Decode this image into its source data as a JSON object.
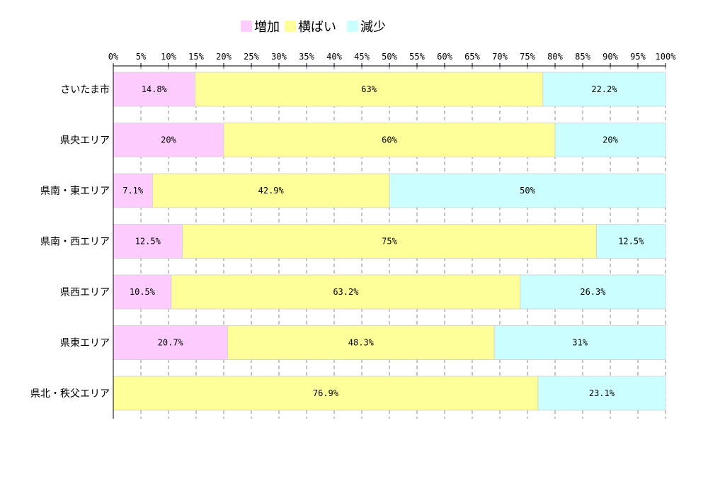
{
  "chart_data": {
    "type": "bar",
    "orientation": "horizontal",
    "stacked": "percent",
    "categories": [
      "さいたま市",
      "県央エリア",
      "県南・東エリア",
      "県南・西エリア",
      "県西エリア",
      "県東エリア",
      "県北・秩父エリア"
    ],
    "series": [
      {
        "name": "増加",
        "color": "#ffccff",
        "values": [
          14.8,
          20,
          7.1,
          12.5,
          10.5,
          20.7,
          0
        ],
        "labels": [
          "14.8%",
          "20%",
          "7.1%",
          "12.5%",
          "10.5%",
          "20.7%",
          ""
        ]
      },
      {
        "name": "横ばい",
        "color": "#ffff99",
        "values": [
          63,
          60,
          42.9,
          75,
          63.2,
          48.3,
          76.9
        ],
        "labels": [
          "63%",
          "60%",
          "42.9%",
          "75%",
          "63.2%",
          "48.3%",
          "76.9%"
        ]
      },
      {
        "name": "減少",
        "color": "#ccffff",
        "values": [
          22.2,
          20,
          50,
          12.5,
          26.3,
          31,
          23.1
        ],
        "labels": [
          "22.2%",
          "20%",
          "50%",
          "12.5%",
          "26.3%",
          "31%",
          "23.1%"
        ]
      }
    ],
    "xlim": [
      0,
      100
    ],
    "xticks": [
      "0%",
      "5%",
      "10%",
      "15%",
      "20%",
      "25%",
      "30%",
      "35%",
      "40%",
      "45%",
      "50%",
      "55%",
      "60%",
      "65%",
      "70%",
      "75%",
      "80%",
      "85%",
      "90%",
      "95%",
      "100%"
    ],
    "grid": true,
    "grid_style": "dashed-vertical",
    "legend_placement": "top"
  }
}
